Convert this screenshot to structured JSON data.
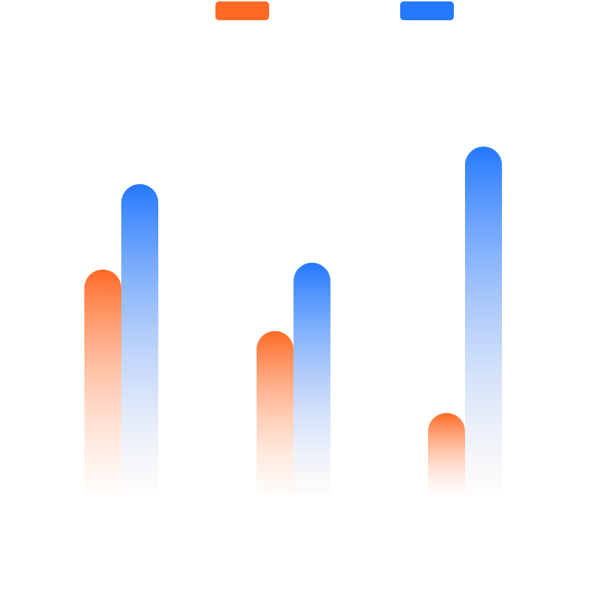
{
  "colors": {
    "series_a": "#ff6a26",
    "series_b": "#2479ff",
    "fade_end": "#fff7f1"
  },
  "chart_data": {
    "type": "bar",
    "title": "",
    "xlabel": "",
    "ylabel": "",
    "categories": [
      "",
      "",
      ""
    ],
    "ylim": [
      0,
      100
    ],
    "grid": false,
    "legend_position": "top",
    "series": [
      {
        "values": [
          66,
          48,
          24
        ]
      },
      {
        "values": [
          91,
          68,
          102
        ]
      }
    ]
  }
}
